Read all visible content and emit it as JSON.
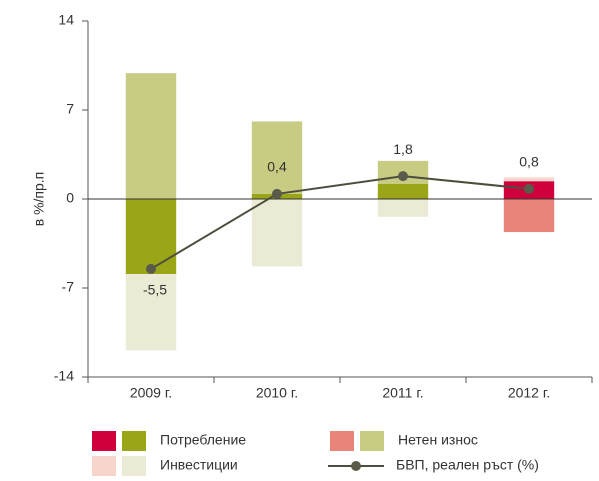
{
  "chart_data": {
    "type": "bar",
    "y_label": "в %/пр.п",
    "categories": [
      "2009 г.",
      "2010 г.",
      "2011 г.",
      "2012 г."
    ],
    "ylim": [
      -14,
      14
    ],
    "yticks": [
      -14,
      -7,
      0,
      7,
      14
    ],
    "series": [
      {
        "name": "Потребление",
        "colors": [
          "#9aa617",
          "#9aa617",
          "#9aa617",
          "#d0003c"
        ],
        "values": [
          -5.9,
          0.4,
          1.2,
          1.4
        ]
      },
      {
        "name": "Инвестиции",
        "colors": [
          "#ebebd5",
          "#ebebd5",
          "#ebebd5",
          "#f7d5cc"
        ],
        "values": [
          -6.0,
          -5.3,
          -1.4,
          0.3
        ]
      },
      {
        "name": "Нетен износ",
        "colors": [
          "#c8cb82",
          "#c8cb82",
          "#c8cb82",
          "#e8847a"
        ],
        "values": [
          9.9,
          5.7,
          1.8,
          -2.6
        ]
      },
      {
        "name": "БВП, реален ръст (%)",
        "type": "line",
        "color": "#4d4d3d",
        "values": [
          -5.5,
          0.4,
          1.8,
          0.8
        ],
        "value_labels": [
          "-5,5",
          "0,4",
          "1,8",
          "0,8"
        ]
      }
    ]
  }
}
